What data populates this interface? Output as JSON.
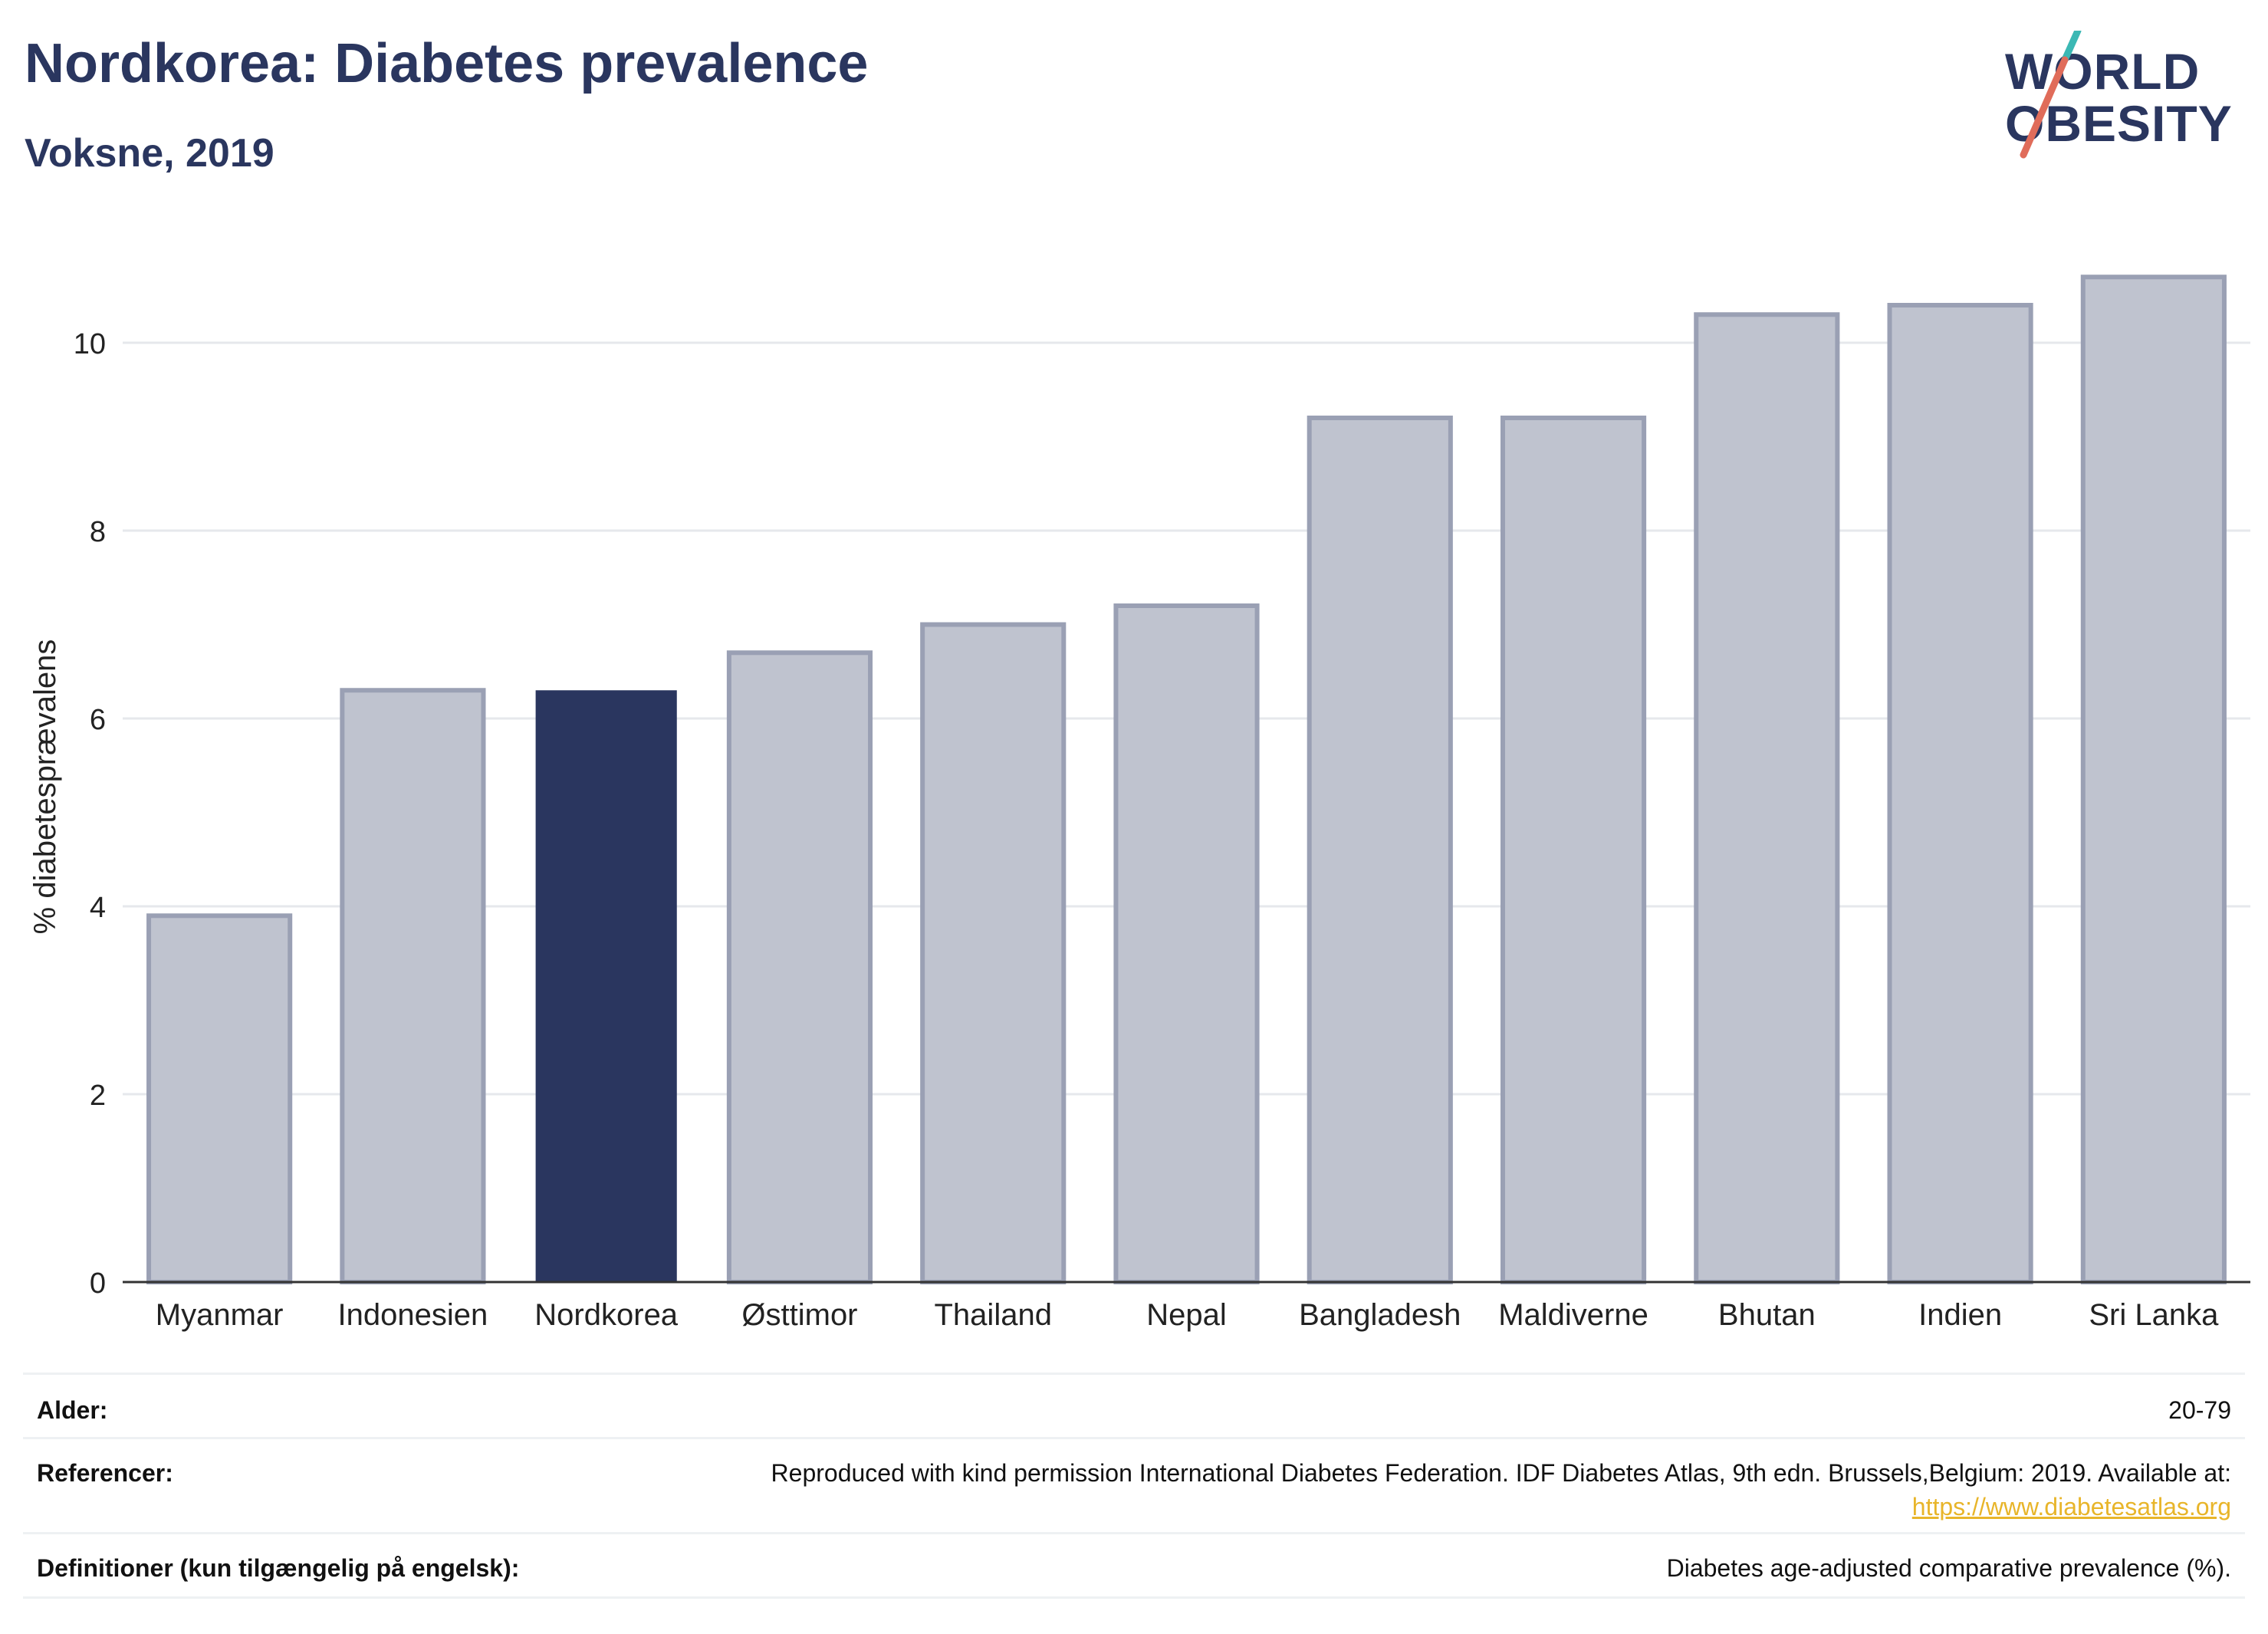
{
  "header": {
    "title": "Nordkorea: Diabetes prevalence",
    "subtitle": "Voksne, 2019"
  },
  "logo": {
    "line1": "WORLD",
    "line2": "OBESITY",
    "accent_colors": [
      "#e06c5a",
      "#3bb8b4"
    ]
  },
  "chart_data": {
    "type": "bar",
    "categories": [
      "Myanmar",
      "Indonesien",
      "Nordkorea",
      "Østtimor",
      "Thailand",
      "Nepal",
      "Bangladesh",
      "Maldiverne",
      "Bhutan",
      "Indien",
      "Sri Lanka"
    ],
    "values": [
      3.9,
      6.3,
      6.3,
      6.7,
      7.0,
      7.2,
      9.2,
      9.2,
      10.3,
      10.4,
      10.7
    ],
    "highlight": "Nordkorea",
    "ylabel": "% diabetesprævalens",
    "ylim": [
      0,
      11.2
    ],
    "yticks": [
      0,
      2,
      4,
      6,
      8,
      10
    ],
    "grid": true,
    "colors": {
      "highlight": "#2a365f",
      "bar_fill": "#bfc3cf",
      "bar_edge": "#9aa0b4"
    }
  },
  "meta": {
    "age_label": "Alder:",
    "age_value": "20-79",
    "refs_label": "Referencer:",
    "refs_value": "Reproduced with kind permission International Diabetes Federation. IDF Diabetes Atlas, 9th edn. Brussels,Belgium: 2019. Available at:",
    "refs_link": "https://www.diabetesatlas.org",
    "defs_label": "Definitioner (kun tilgængelig på engelsk):",
    "defs_value": "Diabetes age-adjusted comparative prevalence (%)."
  }
}
